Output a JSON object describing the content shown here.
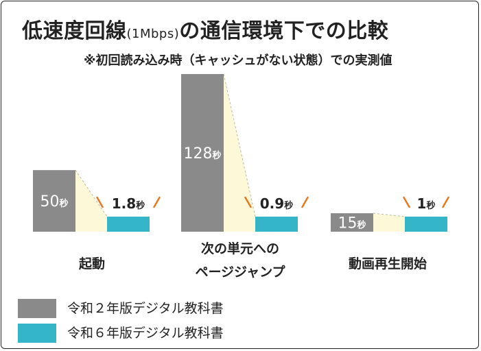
{
  "title": {
    "main": "低速度回線",
    "paren": "(1Mbps)",
    "rest": "の通信環境下での比較"
  },
  "subtitle": "※初回読み込み時（キャッシュがない状態）での実測値",
  "colors": {
    "old": "#8a8a8a",
    "new": "#35b6c8",
    "shade": "#fcf8d8",
    "accent": "#e8781e"
  },
  "chart_data": {
    "type": "bar",
    "categories": [
      "起動",
      "次の単元への\nページジャンプ",
      "動画再生開始"
    ],
    "series": [
      {
        "name": "令和２年版デジタル教科書",
        "values": [
          50,
          128,
          15
        ]
      },
      {
        "name": "令和６年版デジタル教科書",
        "values": [
          1.8,
          0.9,
          1
        ]
      }
    ],
    "unit": "秒",
    "labels": {
      "old": [
        "50",
        "128",
        "15"
      ],
      "new": [
        "1.8",
        "0.9",
        "1"
      ]
    }
  },
  "category_labels": [
    {
      "lines": [
        "起動"
      ]
    },
    {
      "lines": [
        "次の単元への",
        "ページジャンプ"
      ]
    },
    {
      "lines": [
        "動画再生開始"
      ]
    }
  ],
  "legend": [
    {
      "label": "令和２年版デジタル教科書"
    },
    {
      "label": "令和６年版デジタル教科書"
    }
  ]
}
